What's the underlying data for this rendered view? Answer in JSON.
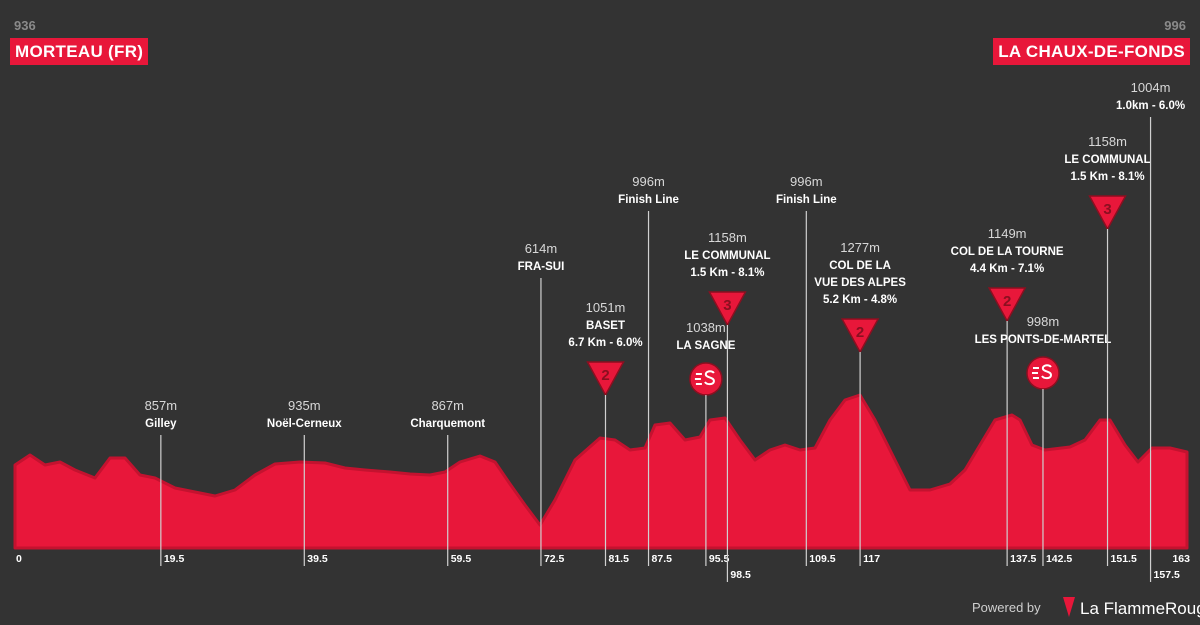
{
  "header": {
    "start": {
      "elevation": "936",
      "name": "MORTEAU (FR)"
    },
    "finish": {
      "elevation": "996",
      "name": "LA CHAUX-DE-FONDS"
    }
  },
  "axis": {
    "start": 0,
    "end": 163
  },
  "markers": [
    {
      "km": 19.5,
      "elevation": "857m",
      "lines": [
        "Gilley"
      ]
    },
    {
      "km": 39.5,
      "elevation": "935m",
      "lines": [
        "Noël-Cerneux"
      ]
    },
    {
      "km": 59.5,
      "elevation": "867m",
      "lines": [
        "Charquemont"
      ]
    },
    {
      "km": 72.5,
      "elevation": "614m",
      "lines": [
        "FRA-SUI"
      ]
    },
    {
      "km": 81.5,
      "elevation": "1051m",
      "lines": [
        "BASET",
        "6.7 Km - 6.0%"
      ],
      "category": "2"
    },
    {
      "km": 87.5,
      "elevation": "996m",
      "lines": [
        "Finish Line"
      ]
    },
    {
      "km": 95.5,
      "elevation": "1038m",
      "lines": [
        "LA SAGNE"
      ],
      "sprint": true
    },
    {
      "km": 98.5,
      "elevation": "1158m",
      "lines": [
        "LE COMMUNAL",
        "1.5 Km - 8.1%"
      ],
      "category": "3"
    },
    {
      "km": 109.5,
      "elevation": "996m",
      "lines": [
        "Finish Line"
      ]
    },
    {
      "km": 117,
      "elevation": "1277m",
      "lines": [
        "COL DE LA",
        "VUE DES ALPES",
        "5.2 Km - 4.8%"
      ],
      "category": "2"
    },
    {
      "km": 137.5,
      "elevation": "1149m",
      "lines": [
        "COL DE LA TOURNE",
        "4.4 Km - 7.1%"
      ],
      "category": "2"
    },
    {
      "km": 142.5,
      "elevation": "998m",
      "lines": [
        "LES PONTS-DE-MARTEL"
      ],
      "sprint": true
    },
    {
      "km": 151.5,
      "elevation": "1158m",
      "lines": [
        "LE COMMUNAL",
        "1.5 Km - 8.1%"
      ],
      "category": "3"
    },
    {
      "km": 157.5,
      "elevation": "1004m",
      "lines": [
        "1.0km - 6.0%"
      ]
    }
  ],
  "footer": {
    "powered": "Powered by",
    "brand": "La FlammeRouge"
  }
}
